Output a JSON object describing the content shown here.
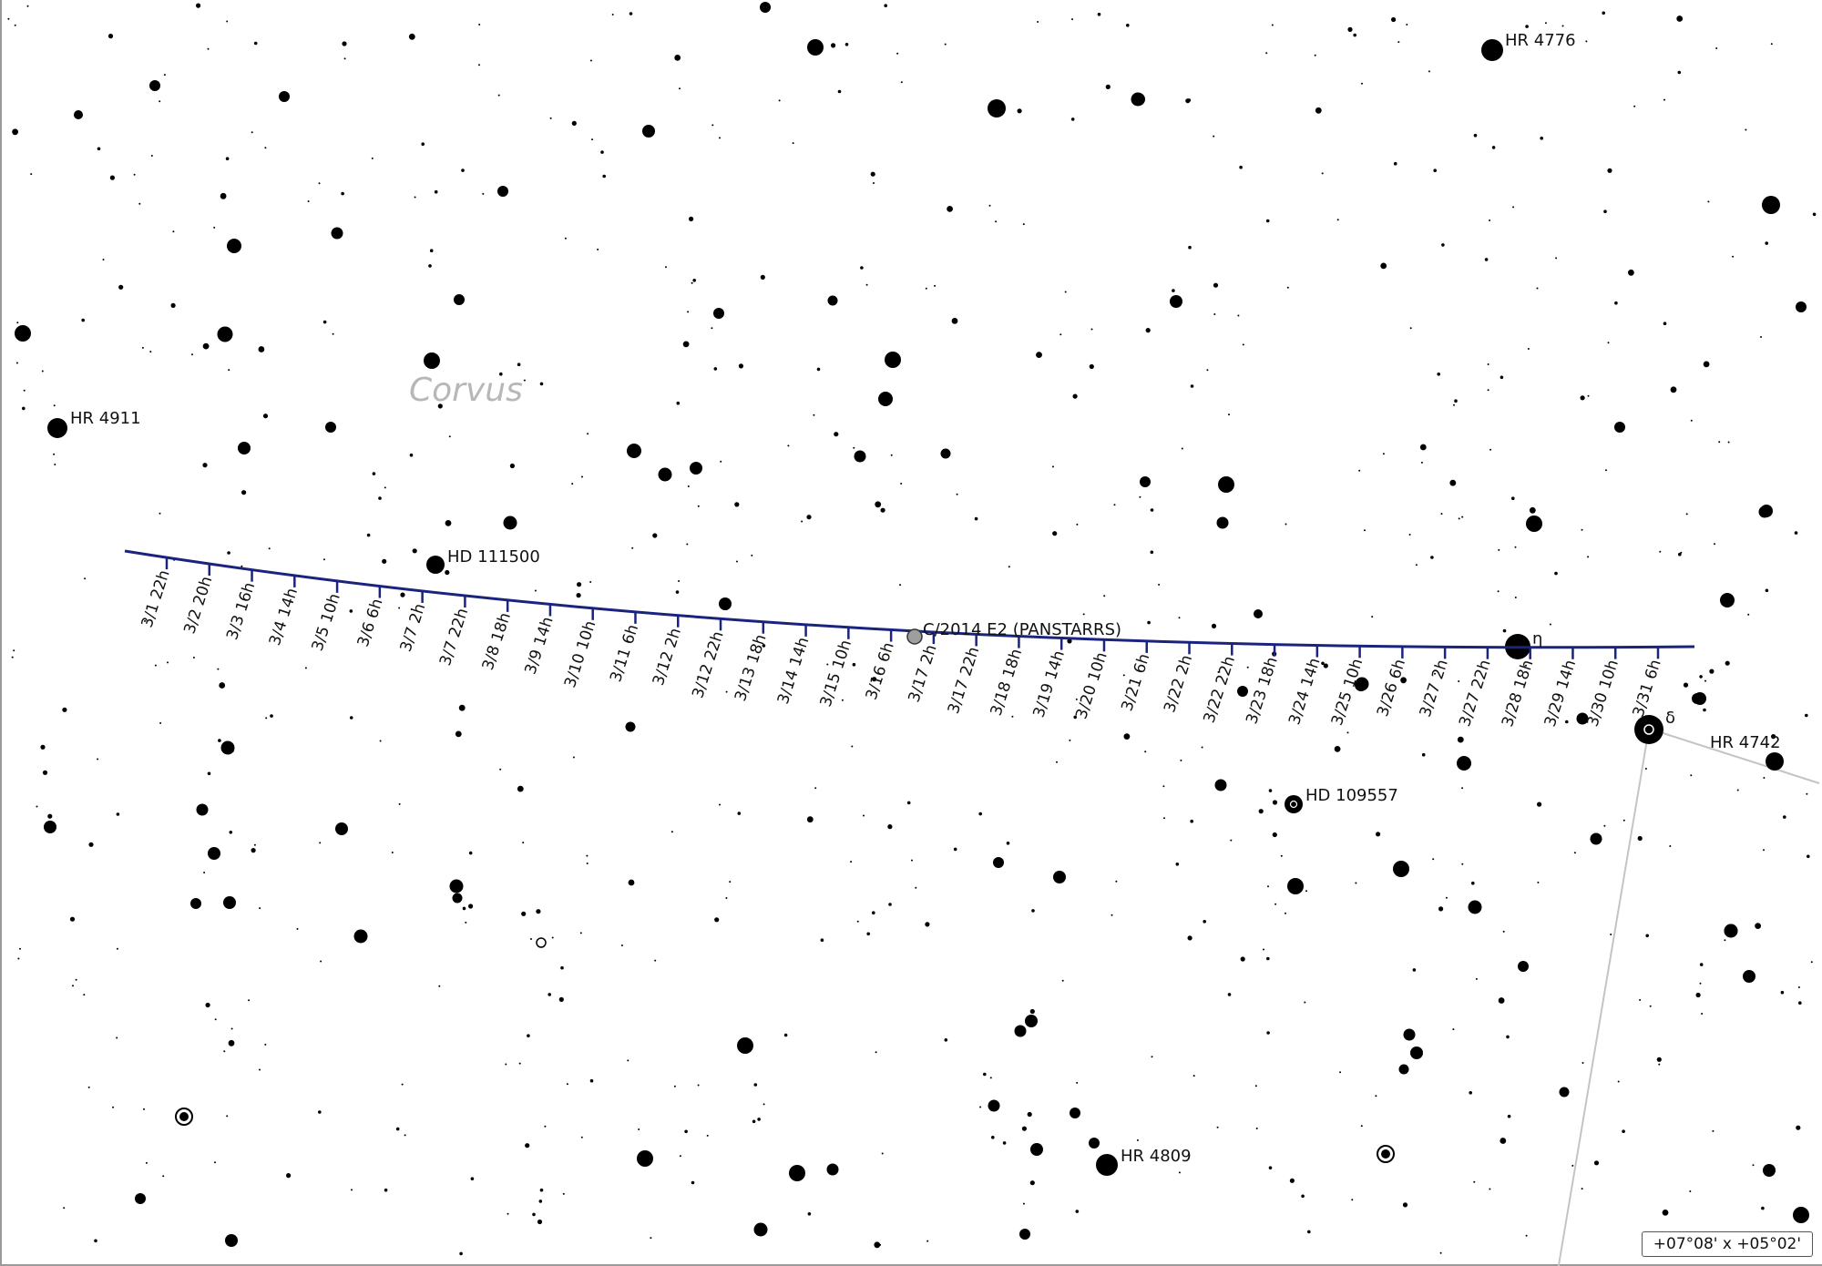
{
  "constellation": {
    "name": "Corvus"
  },
  "comet": {
    "name": "C/2014 E2 (PANSTARRS)"
  },
  "path_color": "#1a237e",
  "star_labels": {
    "hr4776": "HR 4776",
    "hr4911": "HR 4911",
    "hd111500": "HD 111500",
    "eta": "η",
    "delta": "δ",
    "hr4742": "HR 4742",
    "hd109557": "HD 109557",
    "hr4809": "HR 4809"
  },
  "time_ticks": [
    "3/1 22h",
    "3/2 20h",
    "3/3 16h",
    "3/4 14h",
    "3/5 10h",
    "3/6 6h",
    "3/7 2h",
    "3/7 22h",
    "3/8 18h",
    "3/9 14h",
    "3/10 10h",
    "3/11 6h",
    "3/12 2h",
    "3/12 22h",
    "3/13 18h",
    "3/14 14h",
    "3/15 10h",
    "3/16 6h",
    "3/17 2h",
    "3/17 22h",
    "3/18 18h",
    "3/19 14h",
    "3/20 10h",
    "3/21 6h",
    "3/22 2h",
    "3/22 22h",
    "3/23 18h",
    "3/24 14h",
    "3/25 10h",
    "3/26 6h",
    "3/27 2h",
    "3/27 22h",
    "3/28 18h",
    "3/29 14h",
    "3/30 10h",
    "3/31 6h"
  ],
  "field_of_view": "+07°08' x +05°02'"
}
